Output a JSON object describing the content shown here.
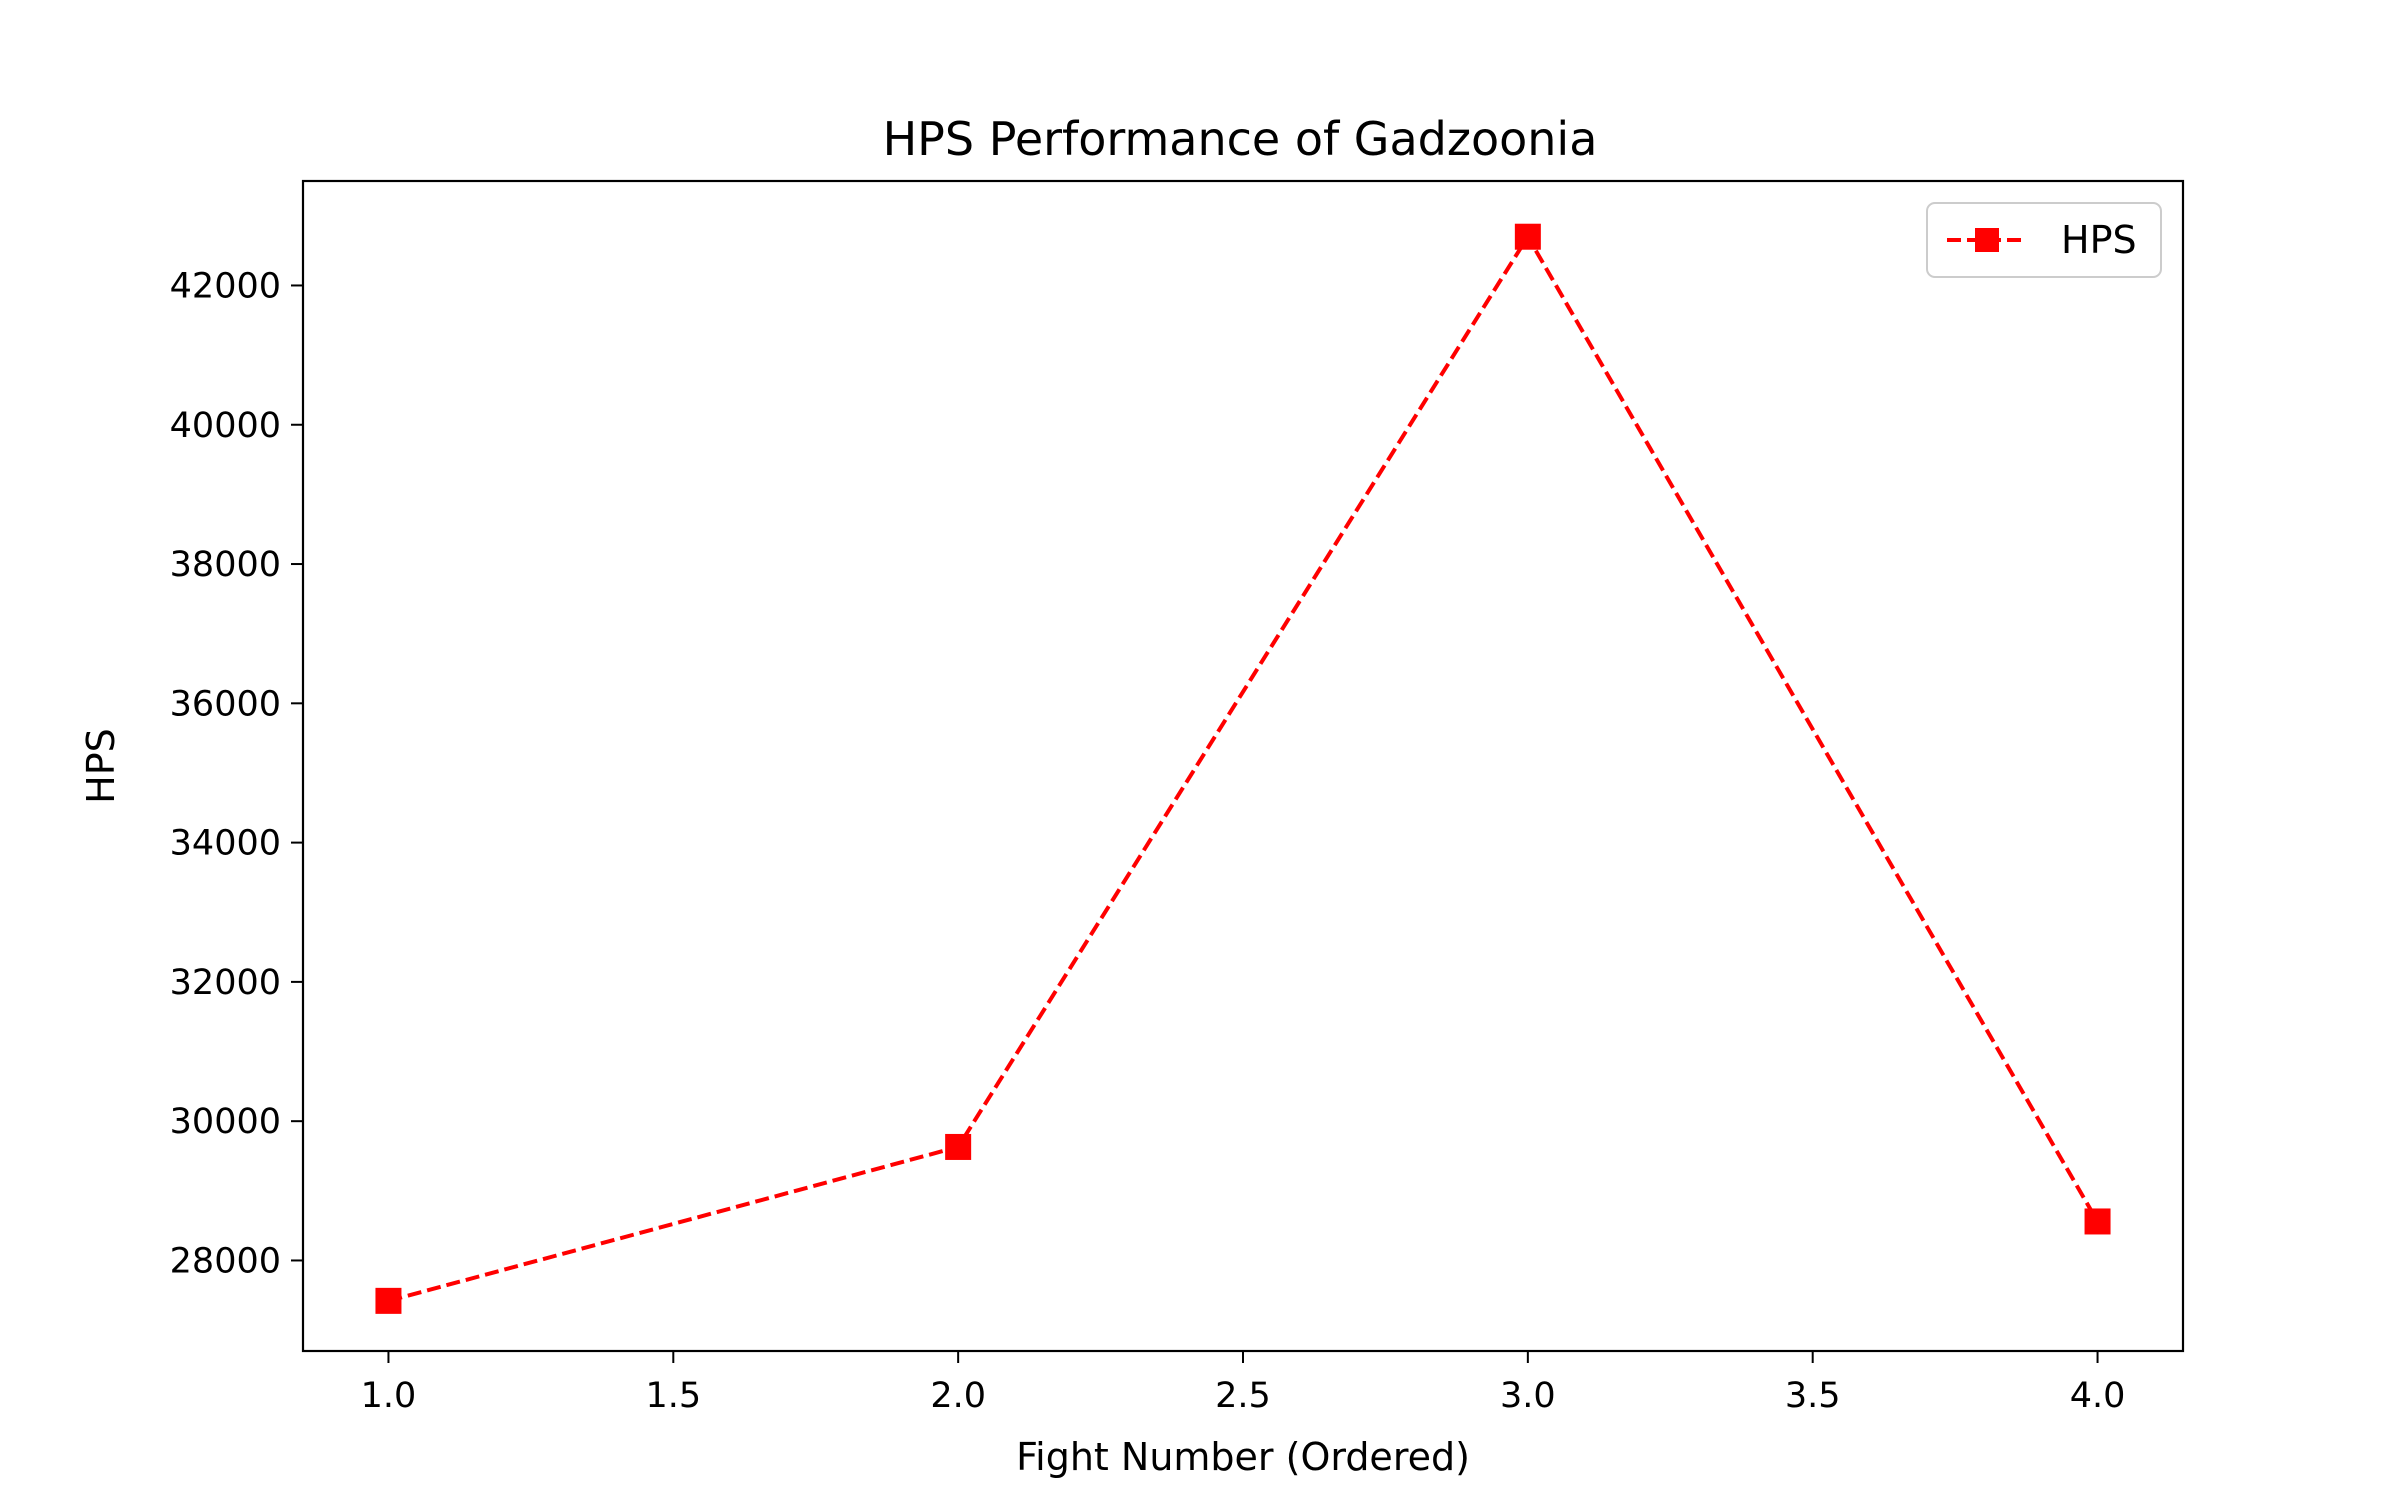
{
  "chart_data": {
    "type": "line",
    "title": "HPS Performance of Gadzoonia",
    "xlabel": "Fight Number (Ordered)",
    "ylabel": "HPS",
    "xlim": [
      0.85,
      4.15
    ],
    "ylim": [
      26700,
      43500
    ],
    "x_ticks": [
      1.0,
      1.5,
      2.0,
      2.5,
      3.0,
      3.5,
      4.0
    ],
    "x_tick_labels": [
      "1.0",
      "1.5",
      "2.0",
      "2.5",
      "3.0",
      "3.5",
      "4.0"
    ],
    "y_ticks": [
      28000,
      30000,
      32000,
      34000,
      36000,
      38000,
      40000,
      42000
    ],
    "y_tick_labels": [
      "28000",
      "30000",
      "32000",
      "34000",
      "36000",
      "38000",
      "40000",
      "42000"
    ],
    "grid": false,
    "legend_position": "top-right",
    "series": [
      {
        "name": "HPS",
        "color": "#ff0000",
        "line_style": "dashed",
        "marker": "square",
        "x": [
          1,
          2,
          3,
          4
        ],
        "y": [
          27420,
          29630,
          42700,
          28560
        ]
      }
    ]
  }
}
